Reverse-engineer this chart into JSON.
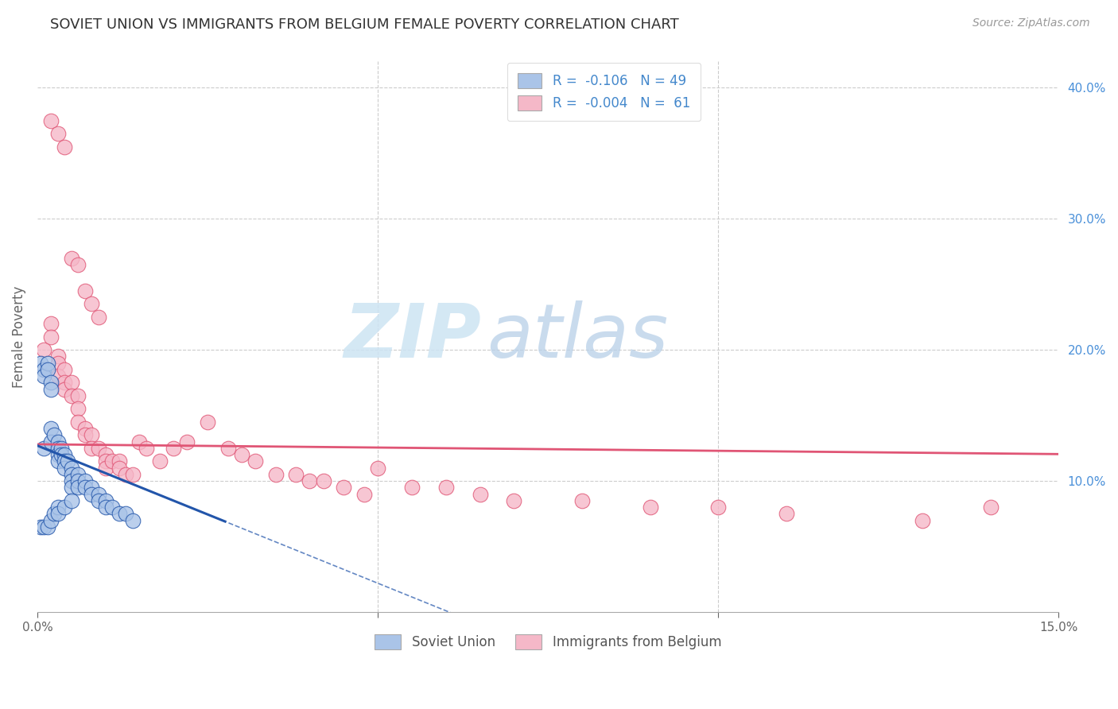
{
  "title": "SOVIET UNION VS IMMIGRANTS FROM BELGIUM FEMALE POVERTY CORRELATION CHART",
  "source": "Source: ZipAtlas.com",
  "ylabel": "Female Poverty",
  "xlim": [
    0,
    0.15
  ],
  "ylim": [
    0,
    0.42
  ],
  "series1_color": "#aac4e8",
  "series2_color": "#f5b8c8",
  "trendline1_color": "#2255aa",
  "trendline2_color": "#e05575",
  "series1_label": "Soviet Union",
  "series2_label": "Immigrants from Belgium",
  "legend_color": "#4488cc",
  "watermark_zip_color": "#c8dff0",
  "watermark_atlas_color": "#b8cce0",
  "soviet_x": [
    0.0005,
    0.001,
    0.001,
    0.001,
    0.0015,
    0.0015,
    0.002,
    0.002,
    0.002,
    0.002,
    0.0025,
    0.003,
    0.003,
    0.003,
    0.003,
    0.0035,
    0.0035,
    0.004,
    0.004,
    0.004,
    0.0045,
    0.005,
    0.005,
    0.005,
    0.005,
    0.006,
    0.006,
    0.006,
    0.007,
    0.007,
    0.008,
    0.008,
    0.009,
    0.009,
    0.01,
    0.01,
    0.011,
    0.012,
    0.013,
    0.014,
    0.0005,
    0.001,
    0.0015,
    0.002,
    0.0025,
    0.003,
    0.003,
    0.004,
    0.005
  ],
  "soviet_y": [
    0.19,
    0.185,
    0.18,
    0.125,
    0.19,
    0.185,
    0.175,
    0.17,
    0.14,
    0.13,
    0.135,
    0.13,
    0.125,
    0.12,
    0.115,
    0.125,
    0.12,
    0.12,
    0.115,
    0.11,
    0.115,
    0.11,
    0.105,
    0.1,
    0.095,
    0.105,
    0.1,
    0.095,
    0.1,
    0.095,
    0.095,
    0.09,
    0.09,
    0.085,
    0.085,
    0.08,
    0.08,
    0.075,
    0.075,
    0.07,
    0.065,
    0.065,
    0.065,
    0.07,
    0.075,
    0.08,
    0.075,
    0.08,
    0.085
  ],
  "belgium_x": [
    0.001,
    0.002,
    0.002,
    0.003,
    0.003,
    0.003,
    0.004,
    0.004,
    0.004,
    0.005,
    0.005,
    0.006,
    0.006,
    0.006,
    0.007,
    0.007,
    0.008,
    0.008,
    0.009,
    0.01,
    0.01,
    0.01,
    0.011,
    0.012,
    0.012,
    0.013,
    0.014,
    0.015,
    0.016,
    0.018,
    0.02,
    0.022,
    0.025,
    0.028,
    0.03,
    0.032,
    0.035,
    0.038,
    0.04,
    0.042,
    0.045,
    0.048,
    0.05,
    0.055,
    0.06,
    0.065,
    0.07,
    0.08,
    0.09,
    0.1,
    0.11,
    0.13,
    0.002,
    0.003,
    0.004,
    0.005,
    0.006,
    0.007,
    0.008,
    0.009,
    0.14
  ],
  "belgium_y": [
    0.2,
    0.22,
    0.21,
    0.195,
    0.19,
    0.18,
    0.185,
    0.175,
    0.17,
    0.175,
    0.165,
    0.165,
    0.155,
    0.145,
    0.14,
    0.135,
    0.135,
    0.125,
    0.125,
    0.12,
    0.115,
    0.11,
    0.115,
    0.115,
    0.11,
    0.105,
    0.105,
    0.13,
    0.125,
    0.115,
    0.125,
    0.13,
    0.145,
    0.125,
    0.12,
    0.115,
    0.105,
    0.105,
    0.1,
    0.1,
    0.095,
    0.09,
    0.11,
    0.095,
    0.095,
    0.09,
    0.085,
    0.085,
    0.08,
    0.08,
    0.075,
    0.07,
    0.375,
    0.365,
    0.355,
    0.27,
    0.265,
    0.245,
    0.235,
    0.225,
    0.08
  ],
  "trendline1_x_solid_end": 0.028,
  "trendline1_intercept": 0.127,
  "trendline1_slope": -2.1,
  "trendline2_intercept": 0.128,
  "trendline2_slope": -0.05
}
